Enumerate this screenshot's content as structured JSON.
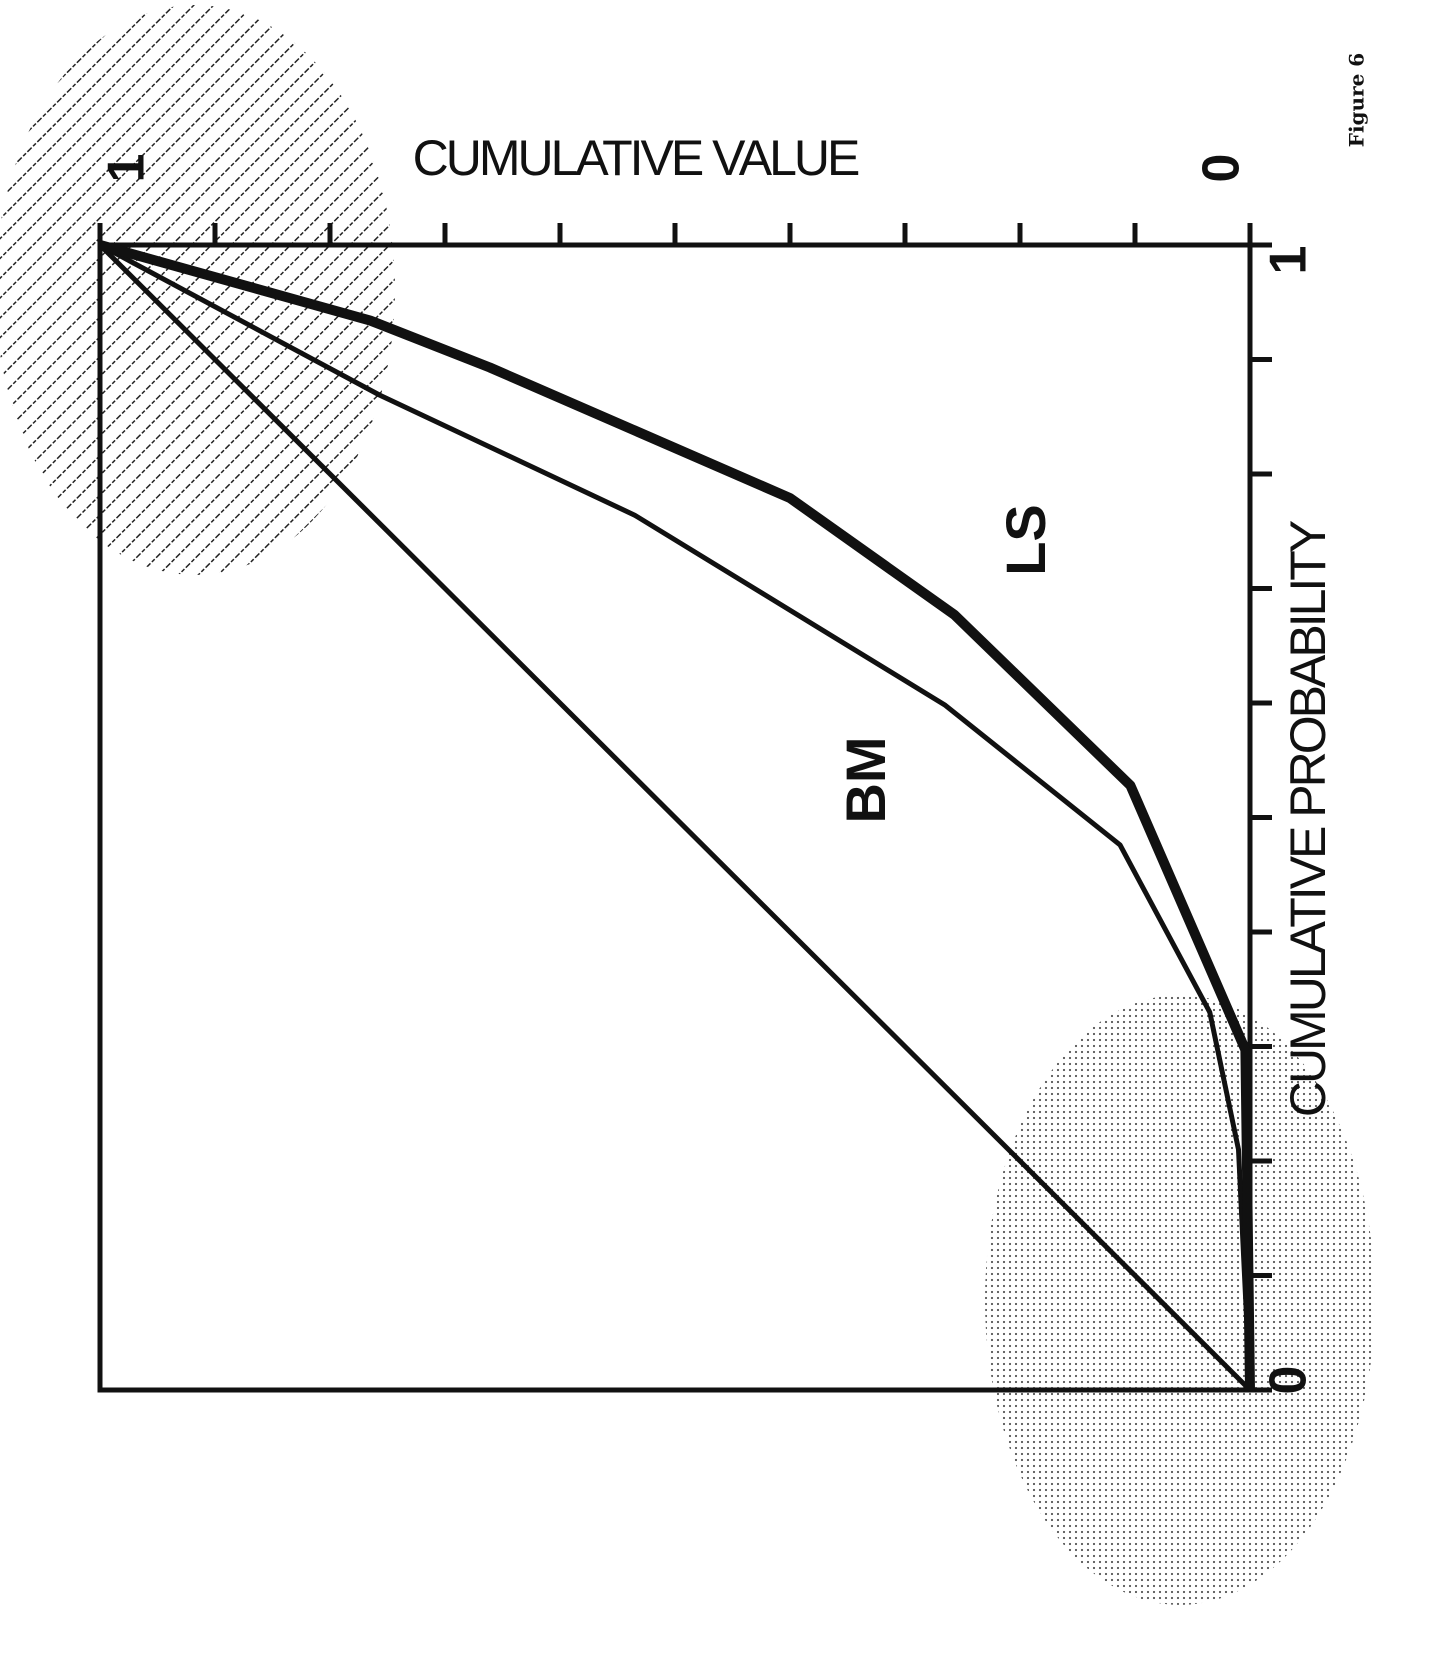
{
  "chart_data": {
    "type": "line",
    "figure_label": "Figure 6",
    "x_label": "CUMULATIVE PROBABILITY",
    "y_label": "CUMULATIVE VALUE",
    "xlim": [
      0,
      1
    ],
    "ylim": [
      0,
      1
    ],
    "xticks": [
      0,
      1
    ],
    "yticks": [
      0,
      1
    ],
    "x_minor_ticks": [
      0.1,
      0.2,
      0.3,
      0.4,
      0.5,
      0.6,
      0.7,
      0.8,
      0.9
    ],
    "y_minor_ticks": [
      0.1,
      0.2,
      0.3,
      0.4,
      0.5,
      0.6,
      0.7,
      0.8,
      0.9
    ],
    "series": [
      {
        "color": "#111111",
        "x": [
          0,
          1
        ],
        "values": [
          0,
          1
        ]
      },
      {
        "name": "BM",
        "color": "#111111",
        "x": [
          0,
          0.21,
          0.33,
          0.476,
          0.598,
          0.764,
          0.869,
          1
        ],
        "values": [
          0,
          0.01,
          0.035,
          0.113,
          0.265,
          0.535,
          0.757,
          1
        ]
      },
      {
        "name": "LS",
        "color": "#111111",
        "x": [
          0,
          0.297,
          0.528,
          0.677,
          0.779,
          0.893,
          0.934,
          1
        ],
        "values": [
          0,
          0.004,
          0.104,
          0.257,
          0.4,
          0.661,
          0.765,
          1
        ]
      }
    ]
  }
}
